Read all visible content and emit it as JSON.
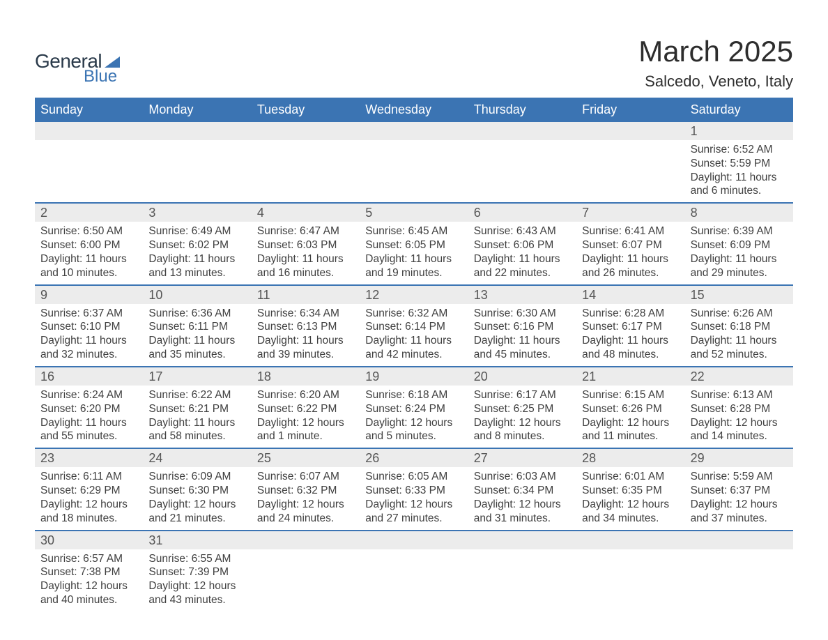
{
  "brand": {
    "word1": "General",
    "word2": "Blue",
    "word1_color": "#2a3a4a",
    "word2_color": "#3b74b3",
    "sail_color": "#3b74b3"
  },
  "title": "March 2025",
  "location": "Salcedo, Veneto, Italy",
  "colors": {
    "header_bg": "#3b74b3",
    "header_text": "#ffffff",
    "daynum_bg": "#ececec",
    "week_divider": "#3b74b3",
    "body_text": "#3f3f3f",
    "page_bg": "#ffffff"
  },
  "typography": {
    "title_fontsize": 42,
    "location_fontsize": 22,
    "weekday_fontsize": 18,
    "daynum_fontsize": 18,
    "info_fontsize": 15.5
  },
  "layout": {
    "columns": 7,
    "rows": 6,
    "cell_min_height": 100
  },
  "weekdays": [
    "Sunday",
    "Monday",
    "Tuesday",
    "Wednesday",
    "Thursday",
    "Friday",
    "Saturday"
  ],
  "weeks": [
    [
      {
        "day": "",
        "sunrise": "",
        "sunset": "",
        "daylight": ""
      },
      {
        "day": "",
        "sunrise": "",
        "sunset": "",
        "daylight": ""
      },
      {
        "day": "",
        "sunrise": "",
        "sunset": "",
        "daylight": ""
      },
      {
        "day": "",
        "sunrise": "",
        "sunset": "",
        "daylight": ""
      },
      {
        "day": "",
        "sunrise": "",
        "sunset": "",
        "daylight": ""
      },
      {
        "day": "",
        "sunrise": "",
        "sunset": "",
        "daylight": ""
      },
      {
        "day": "1",
        "sunrise": "Sunrise: 6:52 AM",
        "sunset": "Sunset: 5:59 PM",
        "daylight": "Daylight: 11 hours and 6 minutes."
      }
    ],
    [
      {
        "day": "2",
        "sunrise": "Sunrise: 6:50 AM",
        "sunset": "Sunset: 6:00 PM",
        "daylight": "Daylight: 11 hours and 10 minutes."
      },
      {
        "day": "3",
        "sunrise": "Sunrise: 6:49 AM",
        "sunset": "Sunset: 6:02 PM",
        "daylight": "Daylight: 11 hours and 13 minutes."
      },
      {
        "day": "4",
        "sunrise": "Sunrise: 6:47 AM",
        "sunset": "Sunset: 6:03 PM",
        "daylight": "Daylight: 11 hours and 16 minutes."
      },
      {
        "day": "5",
        "sunrise": "Sunrise: 6:45 AM",
        "sunset": "Sunset: 6:05 PM",
        "daylight": "Daylight: 11 hours and 19 minutes."
      },
      {
        "day": "6",
        "sunrise": "Sunrise: 6:43 AM",
        "sunset": "Sunset: 6:06 PM",
        "daylight": "Daylight: 11 hours and 22 minutes."
      },
      {
        "day": "7",
        "sunrise": "Sunrise: 6:41 AM",
        "sunset": "Sunset: 6:07 PM",
        "daylight": "Daylight: 11 hours and 26 minutes."
      },
      {
        "day": "8",
        "sunrise": "Sunrise: 6:39 AM",
        "sunset": "Sunset: 6:09 PM",
        "daylight": "Daylight: 11 hours and 29 minutes."
      }
    ],
    [
      {
        "day": "9",
        "sunrise": "Sunrise: 6:37 AM",
        "sunset": "Sunset: 6:10 PM",
        "daylight": "Daylight: 11 hours and 32 minutes."
      },
      {
        "day": "10",
        "sunrise": "Sunrise: 6:36 AM",
        "sunset": "Sunset: 6:11 PM",
        "daylight": "Daylight: 11 hours and 35 minutes."
      },
      {
        "day": "11",
        "sunrise": "Sunrise: 6:34 AM",
        "sunset": "Sunset: 6:13 PM",
        "daylight": "Daylight: 11 hours and 39 minutes."
      },
      {
        "day": "12",
        "sunrise": "Sunrise: 6:32 AM",
        "sunset": "Sunset: 6:14 PM",
        "daylight": "Daylight: 11 hours and 42 minutes."
      },
      {
        "day": "13",
        "sunrise": "Sunrise: 6:30 AM",
        "sunset": "Sunset: 6:16 PM",
        "daylight": "Daylight: 11 hours and 45 minutes."
      },
      {
        "day": "14",
        "sunrise": "Sunrise: 6:28 AM",
        "sunset": "Sunset: 6:17 PM",
        "daylight": "Daylight: 11 hours and 48 minutes."
      },
      {
        "day": "15",
        "sunrise": "Sunrise: 6:26 AM",
        "sunset": "Sunset: 6:18 PM",
        "daylight": "Daylight: 11 hours and 52 minutes."
      }
    ],
    [
      {
        "day": "16",
        "sunrise": "Sunrise: 6:24 AM",
        "sunset": "Sunset: 6:20 PM",
        "daylight": "Daylight: 11 hours and 55 minutes."
      },
      {
        "day": "17",
        "sunrise": "Sunrise: 6:22 AM",
        "sunset": "Sunset: 6:21 PM",
        "daylight": "Daylight: 11 hours and 58 minutes."
      },
      {
        "day": "18",
        "sunrise": "Sunrise: 6:20 AM",
        "sunset": "Sunset: 6:22 PM",
        "daylight": "Daylight: 12 hours and 1 minute."
      },
      {
        "day": "19",
        "sunrise": "Sunrise: 6:18 AM",
        "sunset": "Sunset: 6:24 PM",
        "daylight": "Daylight: 12 hours and 5 minutes."
      },
      {
        "day": "20",
        "sunrise": "Sunrise: 6:17 AM",
        "sunset": "Sunset: 6:25 PM",
        "daylight": "Daylight: 12 hours and 8 minutes."
      },
      {
        "day": "21",
        "sunrise": "Sunrise: 6:15 AM",
        "sunset": "Sunset: 6:26 PM",
        "daylight": "Daylight: 12 hours and 11 minutes."
      },
      {
        "day": "22",
        "sunrise": "Sunrise: 6:13 AM",
        "sunset": "Sunset: 6:28 PM",
        "daylight": "Daylight: 12 hours and 14 minutes."
      }
    ],
    [
      {
        "day": "23",
        "sunrise": "Sunrise: 6:11 AM",
        "sunset": "Sunset: 6:29 PM",
        "daylight": "Daylight: 12 hours and 18 minutes."
      },
      {
        "day": "24",
        "sunrise": "Sunrise: 6:09 AM",
        "sunset": "Sunset: 6:30 PM",
        "daylight": "Daylight: 12 hours and 21 minutes."
      },
      {
        "day": "25",
        "sunrise": "Sunrise: 6:07 AM",
        "sunset": "Sunset: 6:32 PM",
        "daylight": "Daylight: 12 hours and 24 minutes."
      },
      {
        "day": "26",
        "sunrise": "Sunrise: 6:05 AM",
        "sunset": "Sunset: 6:33 PM",
        "daylight": "Daylight: 12 hours and 27 minutes."
      },
      {
        "day": "27",
        "sunrise": "Sunrise: 6:03 AM",
        "sunset": "Sunset: 6:34 PM",
        "daylight": "Daylight: 12 hours and 31 minutes."
      },
      {
        "day": "28",
        "sunrise": "Sunrise: 6:01 AM",
        "sunset": "Sunset: 6:35 PM",
        "daylight": "Daylight: 12 hours and 34 minutes."
      },
      {
        "day": "29",
        "sunrise": "Sunrise: 5:59 AM",
        "sunset": "Sunset: 6:37 PM",
        "daylight": "Daylight: 12 hours and 37 minutes."
      }
    ],
    [
      {
        "day": "30",
        "sunrise": "Sunrise: 6:57 AM",
        "sunset": "Sunset: 7:38 PM",
        "daylight": "Daylight: 12 hours and 40 minutes."
      },
      {
        "day": "31",
        "sunrise": "Sunrise: 6:55 AM",
        "sunset": "Sunset: 7:39 PM",
        "daylight": "Daylight: 12 hours and 43 minutes."
      },
      {
        "day": "",
        "sunrise": "",
        "sunset": "",
        "daylight": ""
      },
      {
        "day": "",
        "sunrise": "",
        "sunset": "",
        "daylight": ""
      },
      {
        "day": "",
        "sunrise": "",
        "sunset": "",
        "daylight": ""
      },
      {
        "day": "",
        "sunrise": "",
        "sunset": "",
        "daylight": ""
      },
      {
        "day": "",
        "sunrise": "",
        "sunset": "",
        "daylight": ""
      }
    ]
  ]
}
